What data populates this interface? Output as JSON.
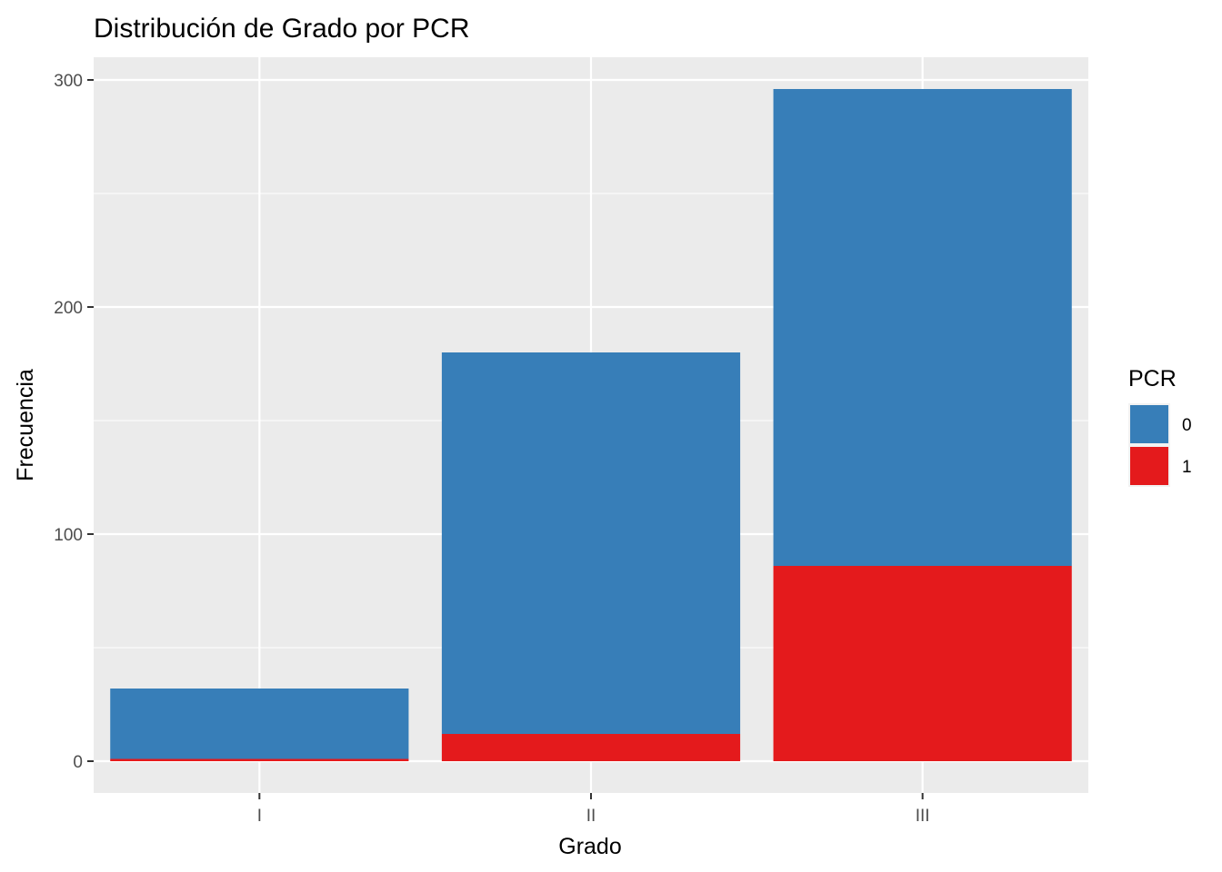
{
  "chart_data": {
    "type": "bar",
    "stacked": true,
    "title": "Distribución de Grado por PCR",
    "xlabel": "Grado",
    "ylabel": "Frecuencia",
    "categories": [
      "I",
      "II",
      "III"
    ],
    "series": [
      {
        "name": "0",
        "values": [
          31,
          168,
          210
        ],
        "color": "#377EB8"
      },
      {
        "name": "1",
        "values": [
          1,
          12,
          86
        ],
        "color": "#E41A1C"
      }
    ],
    "ylim": [
      -14,
      310
    ],
    "yticks": [
      0,
      100,
      200,
      300
    ],
    "grid": true,
    "legend": {
      "title": "PCR",
      "position": "right"
    }
  }
}
